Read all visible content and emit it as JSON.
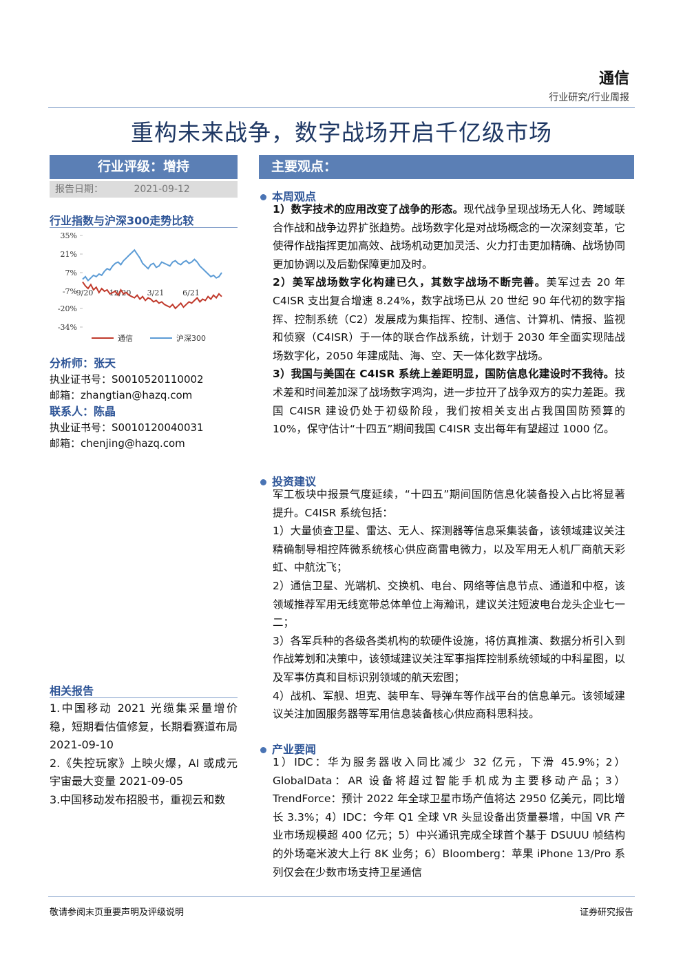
{
  "header": {
    "sector": "通信",
    "category": "行业研究/行业周报"
  },
  "title": "重构未来战争，数字战场开启千亿级市场",
  "rating": "行业评级：增持",
  "report_date": {
    "label": "报告日期：",
    "value": "2021-09-12"
  },
  "chart": {
    "type": "line",
    "title": "行业指数与沪深300走势比较",
    "categories": [
      "9/20",
      null,
      null,
      null,
      null,
      null,
      null,
      null,
      null,
      null,
      null,
      null,
      null,
      "12/20",
      null,
      null,
      null,
      null,
      null,
      null,
      null,
      null,
      null,
      null,
      null,
      null,
      "3/21",
      null,
      null,
      null,
      null,
      null,
      null,
      null,
      null,
      null,
      null,
      null,
      null,
      "6/21",
      null,
      null,
      null,
      null,
      null,
      null,
      null,
      null,
      null,
      null,
      null,
      null
    ],
    "series": [
      {
        "name": "通信",
        "color": "#c0392b",
        "values": [
          0,
          -3,
          -5,
          -2,
          -6,
          -4,
          -8,
          -5,
          -7,
          -6,
          -9,
          -8,
          -7,
          -10,
          -6,
          -9,
          -8,
          -10,
          -11,
          -12,
          -10,
          -13,
          -11,
          -14,
          -12,
          -13,
          -15,
          -14,
          -16,
          -15,
          -17,
          -18,
          -19,
          -17,
          -20,
          -18,
          -16,
          -19,
          -17,
          -15,
          -16,
          -14,
          -12,
          -15,
          -13,
          -14,
          -11,
          -13,
          -10,
          -12,
          -9,
          -11
        ]
      },
      {
        "name": "沪深300",
        "color": "#5b9bd5",
        "values": [
          2,
          4,
          1,
          3,
          5,
          4,
          6,
          5,
          8,
          10,
          9,
          12,
          14,
          15,
          13,
          16,
          18,
          20,
          22,
          24,
          21,
          18,
          14,
          12,
          10,
          13,
          14,
          11,
          12,
          15,
          14,
          13,
          12,
          15,
          16,
          14,
          13,
          15,
          16,
          14,
          15,
          17,
          15,
          12,
          10,
          8,
          6,
          4,
          5,
          3,
          4,
          7
        ]
      }
    ],
    "ylim": [
      -34,
      35
    ],
    "yticks": [
      {
        "value": 35,
        "label": "35%"
      },
      {
        "value": 21,
        "label": "21%"
      },
      {
        "value": 7,
        "label": "7%"
      },
      {
        "value": -7,
        "label": "-7%"
      },
      {
        "value": -20,
        "label": "-20%"
      },
      {
        "value": -34,
        "label": "-34%"
      }
    ]
  },
  "contacts": [
    {
      "title": "分析师：张天",
      "lines": [
        "执业证书号：S0010520110002",
        "邮箱：zhangtian@hazq.com"
      ]
    },
    {
      "title": "联系人：陈晶",
      "lines": [
        "执业证书号：S0010120040031",
        "邮箱：chenjing@hazq.com"
      ]
    }
  ],
  "related": {
    "title": "相关报告",
    "items": [
      "1.中国移动 2021 光缆集采量增价稳，短期看估值修复，长期看赛道布局 2021-09-10",
      "2.《失控玩家》上映火爆，AI 或成元宇宙最大变量 2021-09-05",
      "3.中国移动发布招股书，重视云和数"
    ]
  },
  "main": {
    "title": "主要观点：",
    "sections": [
      {
        "heading": "本周观点",
        "paragraphs": [
          {
            "bold": "1）数字技术的应用改变了战争的形态。",
            "text": "现代战争呈现战场无人化、跨域联合作战和战争边界扩张趋势。战场数字化是对战场概念的一次深刻变革，它使得作战指挥更加高效、战场机动更加灵活、火力打击更加精确、战场协同更加协调以及后勤保障更加及时。"
          },
          {
            "bold": "2）美军战场数字化构建已久，其数字战场不断完善。",
            "text": "美军过去 20 年 C4ISR 支出复合增速 8.24%，数字战场已从 20 世纪 90 年代初的数字指挥、控制系统（C2）发展成为集指挥、控制、通信、计算机、情报、监视和侦察（C4ISR）于一体的联合作战系统，计划于 2030 年全面实现陆战场数字化，2050 年建成陆、海、空、天一体化数字战场。"
          },
          {
            "bold": "3）我国与美国在 C4ISR 系统上差距明显，国防信息化建设时不我待。",
            "text": "技术差和时间差加深了战场数字鸿沟，进一步拉开了战争双方的实力差距。我国 C4ISR 建设仍处于初级阶段，我们按相关支出占我国国防预算的 10%，保守估计“十四五”期间我国 C4ISR 支出每年有望超过 1000 亿。"
          }
        ]
      },
      {
        "heading": "投资建议",
        "paragraphs": [
          {
            "text": "军工板块中报景气度延续，“十四五”期间国防信息化装备投入占比将显著提升。C4ISR 系统包括："
          },
          {
            "text": "1）大量侦查卫星、雷达、无人、探测器等信息采集装备，该领域建议关注精确制导相控阵微系统核心供应商雷电微力，以及军用无人机厂商航天彩虹、中航沈飞；"
          },
          {
            "text": "2）通信卫星、光端机、交换机、电台、网络等信息节点、通道和中枢，该领域推荐军用无线宽带总体单位上海瀚讯，建议关注短波电台龙头企业七一二；"
          },
          {
            "text": "3）各军兵种的各级各类机构的软硬件设施，将仿真推演、数据分析引入到作战筹划和决策中，该领域建议关注军事指挥控制系统领域的中科星图，以及军事仿真和目标识别领域的航天宏图；"
          },
          {
            "text": "4）战机、军舰、坦克、装甲车、导弹车等作战平台的信息单元。该领域建议关注加固服务器等军用信息装备核心供应商科思科技。"
          }
        ]
      },
      {
        "heading": "产业要闻",
        "paragraphs": [
          {
            "text": "1）IDC：华为服务器收入同比减少 32 亿元，下滑 45.9%；2）GlobalData：AR 设备将超过智能手机成为主要移动产品；3）TrendForce：预计 2022 年全球卫星市场产值将达 2950 亿美元，同比增长 3.3%；4）IDC：今年 Q1 全球 VR 头显设备出货量暴增，中国 VR 产业市场规模超 400 亿元；5）中兴通讯完成全球首个基于 DSUUU 帧结构的外场毫米波大上行 8K 业务；6）Bloomberg：苹果 iPhone 13/Pro 系列仅会在少数市场支持卫星通信"
          }
        ]
      }
    ]
  },
  "footer": {
    "left": "敬请参阅末页重要声明及评级说明",
    "right": "证券研究报告"
  }
}
